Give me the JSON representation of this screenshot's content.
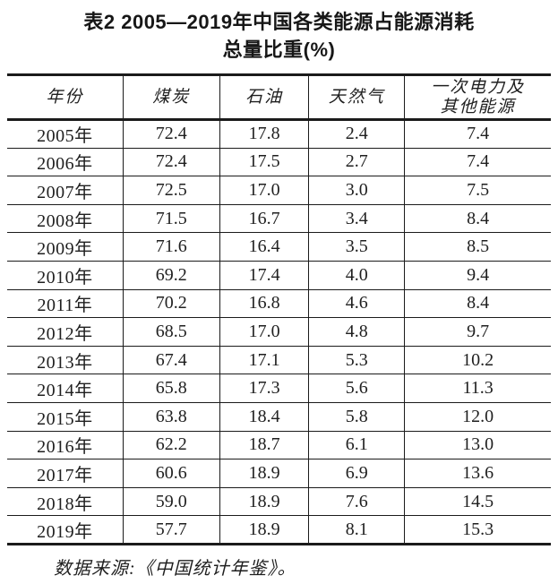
{
  "title": {
    "line1": "表2 2005—2019年中国各类能源占能源消耗",
    "line2": "总量比重(%)"
  },
  "table": {
    "headers": [
      "年份",
      "煤炭",
      "石油",
      "天然气",
      "一次电力及\n其他能源"
    ],
    "rows": [
      [
        "2005年",
        "72.4",
        "17.8",
        "2.4",
        "7.4"
      ],
      [
        "2006年",
        "72.4",
        "17.5",
        "2.7",
        "7.4"
      ],
      [
        "2007年",
        "72.5",
        "17.0",
        "3.0",
        "7.5"
      ],
      [
        "2008年",
        "71.5",
        "16.7",
        "3.4",
        "8.4"
      ],
      [
        "2009年",
        "71.6",
        "16.4",
        "3.5",
        "8.5"
      ],
      [
        "2010年",
        "69.2",
        "17.4",
        "4.0",
        "9.4"
      ],
      [
        "2011年",
        "70.2",
        "16.8",
        "4.6",
        "8.4"
      ],
      [
        "2012年",
        "68.5",
        "17.0",
        "4.8",
        "9.7"
      ],
      [
        "2013年",
        "67.4",
        "17.1",
        "5.3",
        "10.2"
      ],
      [
        "2014年",
        "65.8",
        "17.3",
        "5.6",
        "11.3"
      ],
      [
        "2015年",
        "63.8",
        "18.4",
        "5.8",
        "12.0"
      ],
      [
        "2016年",
        "62.2",
        "18.7",
        "6.1",
        "13.0"
      ],
      [
        "2017年",
        "60.6",
        "18.9",
        "6.9",
        "13.6"
      ],
      [
        "2018年",
        "59.0",
        "18.9",
        "7.6",
        "14.5"
      ],
      [
        "2019年",
        "57.7",
        "18.9",
        "8.1",
        "15.3"
      ]
    ]
  },
  "footer": {
    "source": "数据来源:《中国统计年鉴》。"
  },
  "chart_data": {
    "type": "table",
    "title": "表2 2005—2019年中国各类能源占能源消耗总量比重(%)",
    "columns": [
      "年份",
      "煤炭",
      "石油",
      "天然气",
      "一次电力及其他能源"
    ],
    "categories": [
      "2005",
      "2006",
      "2007",
      "2008",
      "2009",
      "2010",
      "2011",
      "2012",
      "2013",
      "2014",
      "2015",
      "2016",
      "2017",
      "2018",
      "2019"
    ],
    "series": [
      {
        "name": "煤炭",
        "values": [
          72.4,
          72.4,
          72.5,
          71.5,
          71.6,
          69.2,
          70.2,
          68.5,
          67.4,
          65.8,
          63.8,
          62.2,
          60.6,
          59.0,
          57.7
        ]
      },
      {
        "name": "石油",
        "values": [
          17.8,
          17.5,
          17.0,
          16.7,
          16.4,
          17.4,
          16.8,
          17.0,
          17.1,
          17.3,
          18.4,
          18.7,
          18.9,
          18.9,
          18.9
        ]
      },
      {
        "name": "天然气",
        "values": [
          2.4,
          2.7,
          3.0,
          3.4,
          3.5,
          4.0,
          4.6,
          4.8,
          5.3,
          5.6,
          5.8,
          6.1,
          6.9,
          7.6,
          8.1
        ]
      },
      {
        "name": "一次电力及其他能源",
        "values": [
          7.4,
          7.4,
          7.5,
          8.4,
          8.5,
          9.4,
          8.4,
          9.7,
          10.2,
          11.3,
          12.0,
          13.0,
          13.6,
          14.5,
          15.3
        ]
      }
    ],
    "unit": "%",
    "source": "数据来源:《中国统计年鉴》。"
  }
}
